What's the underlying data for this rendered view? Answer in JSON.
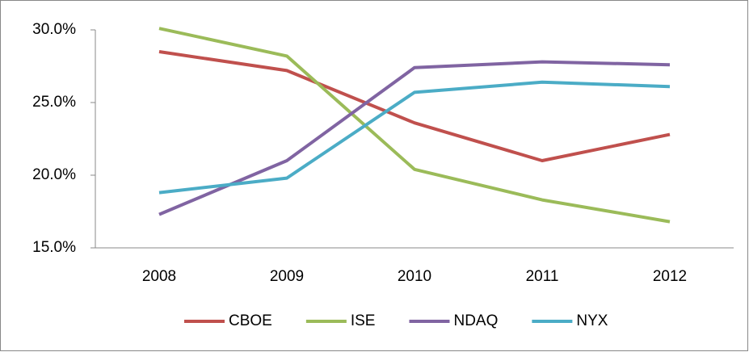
{
  "chart_data": {
    "type": "line",
    "categories": [
      "2008",
      "2009",
      "2010",
      "2011",
      "2012"
    ],
    "series": [
      {
        "name": "CBOE",
        "color": "#c0504d",
        "values": [
          28.5,
          27.2,
          23.6,
          21.0,
          22.8
        ]
      },
      {
        "name": "ISE",
        "color": "#9bbb59",
        "values": [
          30.1,
          28.2,
          20.4,
          18.3,
          16.8
        ]
      },
      {
        "name": "NDAQ",
        "color": "#8064a2",
        "values": [
          17.3,
          21.0,
          27.4,
          27.8,
          27.6
        ]
      },
      {
        "name": "NYX",
        "color": "#4bacc6",
        "values": [
          18.8,
          19.8,
          25.7,
          26.4,
          26.1
        ]
      }
    ],
    "ylim": [
      15,
      30
    ],
    "yticks": [
      {
        "value": 15,
        "label": "15.0%"
      },
      {
        "value": 20,
        "label": "20.0%"
      },
      {
        "value": 25,
        "label": "25.0%"
      },
      {
        "value": 30,
        "label": "30.0%"
      }
    ],
    "grid": false,
    "legend": "bottom"
  }
}
